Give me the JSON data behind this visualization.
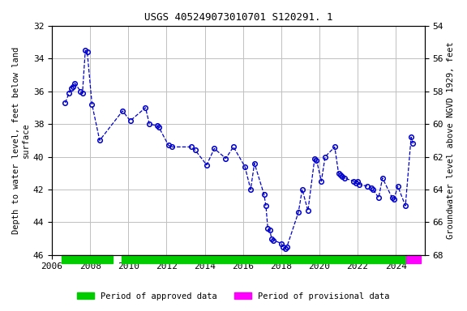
{
  "title": "USGS 405249073010701 S120291. 1",
  "ylabel_left": "Depth to water level, feet below land\nsurface",
  "ylabel_right": "Groundwater level above NGVD 1929, feet",
  "ylim_left": [
    32,
    46
  ],
  "ylim_right": [
    68,
    54
  ],
  "yticks_left": [
    32,
    34,
    36,
    38,
    40,
    42,
    44,
    46
  ],
  "yticks_right": [
    68,
    66,
    64,
    62,
    60,
    58,
    56,
    54
  ],
  "yticks_right_labels": [
    68,
    66,
    64,
    62,
    60,
    58,
    56,
    54
  ],
  "xlim": [
    2006,
    2025.5
  ],
  "xticks": [
    2006,
    2008,
    2010,
    2012,
    2014,
    2016,
    2018,
    2020,
    2022,
    2024
  ],
  "data_x": [
    2006.7,
    2006.9,
    2007.0,
    2007.1,
    2007.2,
    2007.5,
    2007.6,
    2007.75,
    2007.85,
    2008.1,
    2008.5,
    2009.7,
    2010.1,
    2010.9,
    2011.1,
    2011.5,
    2011.6,
    2012.1,
    2012.3,
    2013.3,
    2013.5,
    2014.1,
    2014.5,
    2015.1,
    2015.5,
    2016.1,
    2016.4,
    2016.6,
    2017.1,
    2017.2,
    2017.3,
    2017.4,
    2017.5,
    2017.6,
    2018.0,
    2018.1,
    2018.2,
    2018.3,
    2018.9,
    2019.1,
    2019.4,
    2019.75,
    2019.85,
    2020.1,
    2020.3,
    2020.8,
    2021.0,
    2021.1,
    2021.2,
    2021.3,
    2021.8,
    2021.9,
    2022.0,
    2022.1,
    2022.5,
    2022.7,
    2022.8,
    2023.1,
    2023.3,
    2023.8,
    2023.9,
    2024.1,
    2024.5,
    2024.8,
    2024.9
  ],
  "data_y": [
    36.7,
    36.1,
    35.8,
    35.7,
    35.5,
    36.0,
    36.1,
    33.5,
    33.6,
    36.8,
    39.0,
    37.2,
    37.8,
    37.0,
    38.0,
    38.1,
    38.2,
    39.3,
    39.4,
    39.4,
    39.6,
    40.5,
    39.5,
    40.1,
    39.4,
    40.6,
    42.0,
    40.4,
    42.3,
    43.0,
    44.4,
    44.5,
    45.0,
    45.1,
    45.3,
    45.5,
    45.6,
    45.5,
    43.4,
    42.0,
    43.3,
    40.1,
    40.2,
    41.5,
    40.0,
    39.4,
    41.0,
    41.1,
    41.2,
    41.3,
    41.5,
    41.6,
    41.5,
    41.7,
    41.8,
    41.9,
    42.0,
    42.5,
    41.3,
    42.5,
    42.6,
    41.8,
    43.0,
    38.8,
    39.2
  ],
  "line_color": "#0000CC",
  "marker_color": "#0000CC",
  "line_style": "--",
  "marker_style": "o",
  "marker_size": 4,
  "grid_color": "#C0C0C0",
  "background_color": "#ffffff",
  "approved_bar1": {
    "x_start": 2006.5,
    "x_end": 2009.2,
    "color": "#00CC00"
  },
  "approved_bar2": {
    "x_start": 2009.65,
    "x_end": 2024.55,
    "color": "#00CC00"
  },
  "provisional_bar": {
    "x_start": 2024.55,
    "x_end": 2025.3,
    "color": "#FF00FF"
  },
  "legend_approved_color": "#00CC00",
  "legend_provisional_color": "#FF00FF"
}
